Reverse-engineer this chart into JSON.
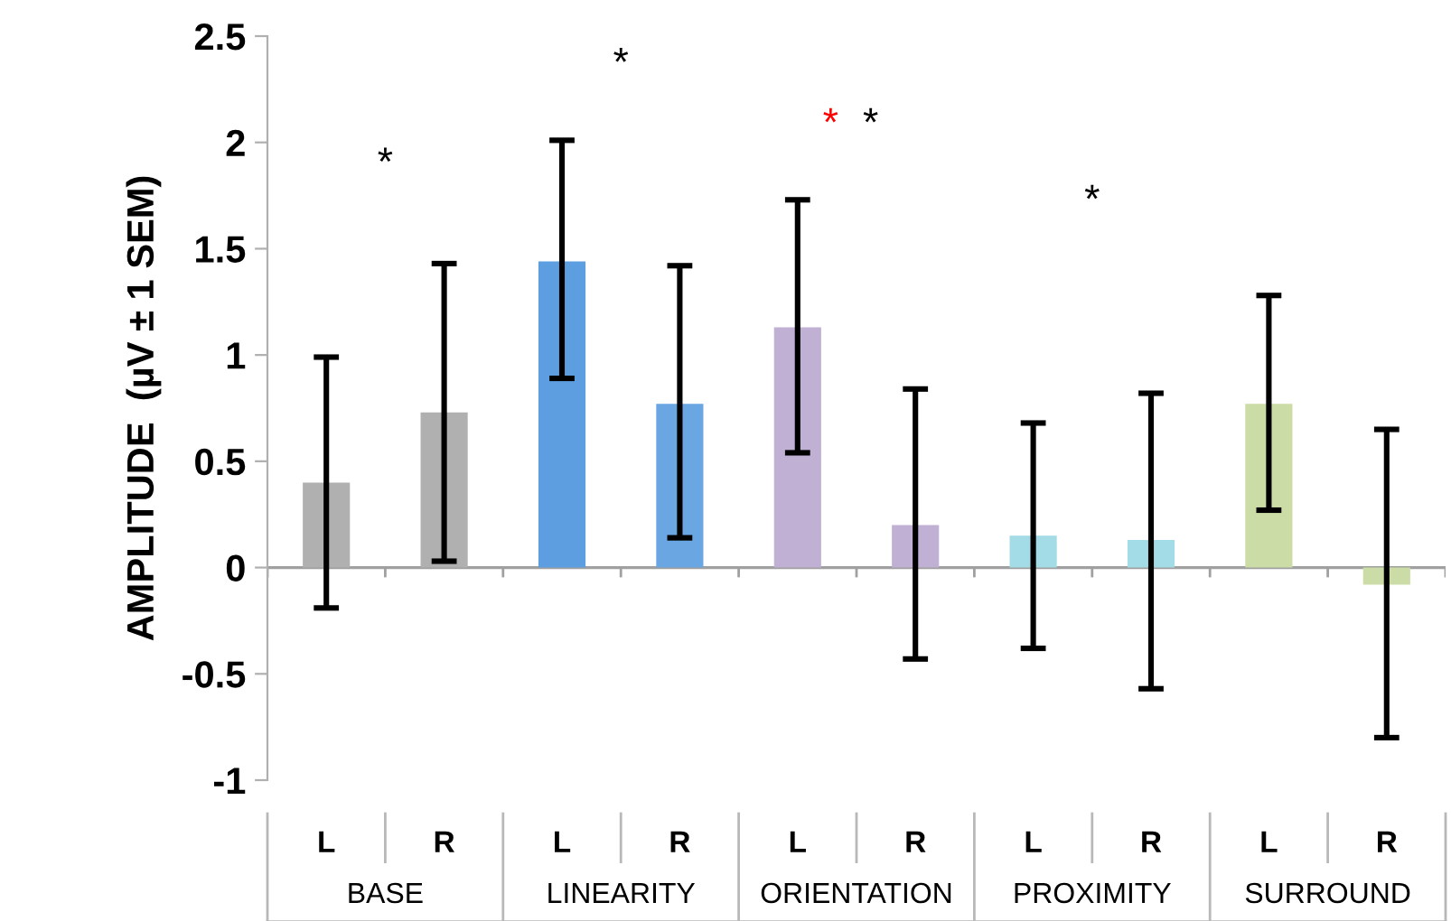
{
  "chart_data": {
    "type": "bar",
    "ylabel": "AMPLITUDE  (µV ± 1 SEM)",
    "categories": [
      "L",
      "R",
      "L",
      "R",
      "L",
      "R",
      "L",
      "R",
      "L",
      "R"
    ],
    "values": [
      0.4,
      0.73,
      1.44,
      0.77,
      1.13,
      0.2,
      0.15,
      0.13,
      0.77,
      -0.08
    ],
    "colors": [
      "#b0b0b0",
      "#b0b0b0",
      "#5d9ee0",
      "#6aa6e2",
      "#bfb0d4",
      "#bfb0d4",
      "#a3dbe6",
      "#a3dbe6",
      "#cbdca6",
      "#cbdca6"
    ],
    "errors": [
      [
        -0.19,
        0.99
      ],
      [
        0.03,
        1.43
      ],
      [
        0.89,
        2.01
      ],
      [
        0.14,
        1.42
      ],
      [
        0.54,
        1.73
      ],
      [
        -0.43,
        0.84
      ],
      [
        -0.38,
        0.68
      ],
      [
        -0.57,
        0.82
      ],
      [
        0.27,
        1.28
      ],
      [
        -0.8,
        0.65
      ]
    ],
    "ylim": [
      -1,
      2.5
    ],
    "yticks": [
      {
        "value": -1,
        "label": "-1"
      },
      {
        "value": -0.5,
        "label": "-0.5"
      },
      0,
      0.5,
      1,
      1.5,
      2,
      2.5
    ],
    "annotations": [
      "BASE",
      "LINEARITY",
      "ORIENTATION",
      "PROXIMITY",
      "SURROUND",
      "*",
      "*",
      "*",
      "*",
      "*"
    ]
  }
}
